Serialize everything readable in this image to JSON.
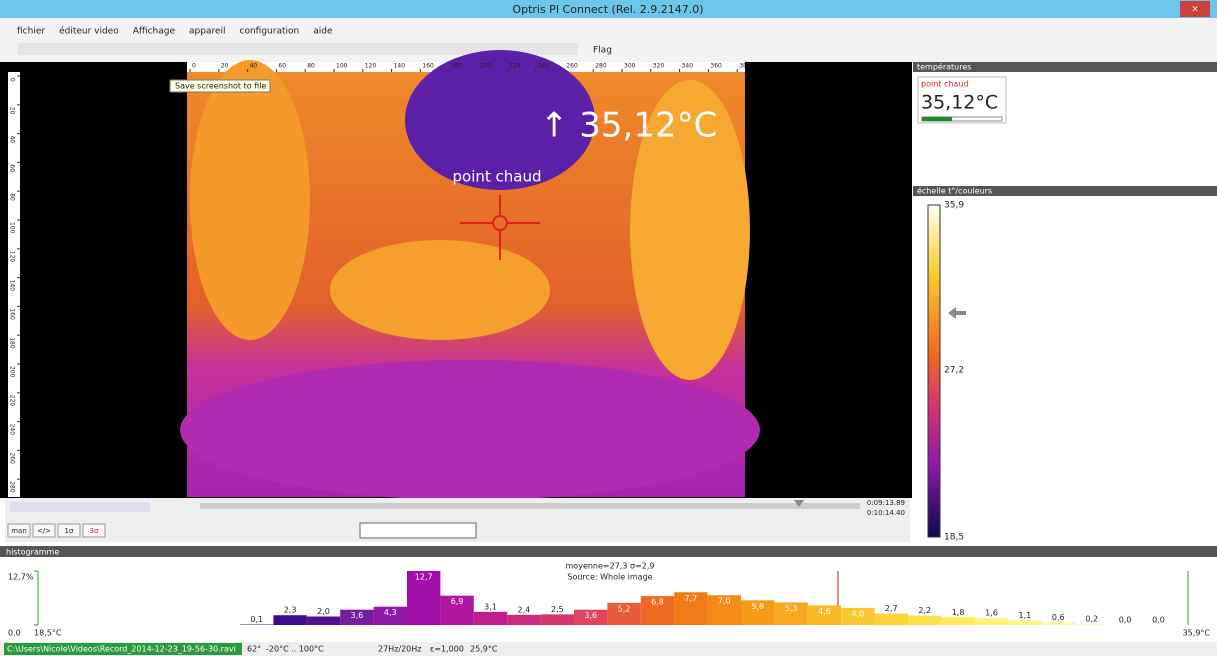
{
  "window": {
    "title": "Optris PI Connect (Rel. 2.9.2147.0)"
  },
  "menu": [
    "fichier",
    "éditeur video",
    "Affichage",
    "appareil",
    "configuration",
    "aide"
  ],
  "toolbar": {
    "flag": "Flag",
    "tooltip": "Save screenshot to file"
  },
  "image": {
    "ruler_x": [
      0,
      20,
      40,
      60,
      80,
      100,
      120,
      140,
      160,
      180,
      200,
      220,
      240,
      260,
      280,
      300,
      320,
      340,
      360,
      380
    ],
    "ruler_y": [
      0,
      20,
      40,
      60,
      80,
      100,
      120,
      140,
      160,
      180,
      200,
      220,
      240,
      260,
      280
    ],
    "hotspot_temp": "↑ 35,12°C",
    "hotspot_label": "point chaud"
  },
  "temperatures": {
    "title": "températures",
    "label": "point chaud",
    "value": "35,12°C"
  },
  "scale": {
    "title": "échelle t°/couleurs",
    "max": "35,9",
    "mid": "27,2",
    "min": "18,5"
  },
  "playback": {
    "time_current": "0:09:13.89",
    "time_total": "0:10:14.40",
    "buttons": [
      "man",
      "</>",
      "1σ",
      "3σ"
    ]
  },
  "histogram": {
    "title": "histogramme",
    "stats": "moyenne=27,3 σ=2,9",
    "source": "Source: Whole image",
    "ylim": [
      0,
      12.7
    ],
    "yticks": [
      {
        "value": 12.7,
        "label": "12,7%"
      },
      {
        "value": 0,
        "label": "0,0"
      }
    ],
    "x_min_label": "18,5°C",
    "x_max_label": "35,9°C",
    "values": [
      0.1,
      2.3,
      2.0,
      3.6,
      4.3,
      12.7,
      6.9,
      3.1,
      2.4,
      2.5,
      3.6,
      5.2,
      6.8,
      7.7,
      7.0,
      5.8,
      5.3,
      4.6,
      4.0,
      2.7,
      2.2,
      1.8,
      1.6,
      1.1,
      0.6,
      0.2,
      0.0,
      0.0
    ],
    "value_labels": [
      "0,1",
      "2,3",
      "2,0",
      "3,6",
      "4,3",
      "12,7",
      "6,9",
      "3,1",
      "2,4",
      "2,5",
      "3,6",
      "5,2",
      "6,8",
      "7,7",
      "7,0",
      "5,8",
      "5,3",
      "4,6",
      "4,0",
      "2,7",
      "2,2",
      "1,8",
      "1,6",
      "1,1",
      "0,6",
      "0,2",
      "0,0",
      "0,0"
    ],
    "colors": [
      "#2a0a6e",
      "#3c0a8c",
      "#55108f",
      "#7a1aa0",
      "#8e1aa6",
      "#a10fa8",
      "#b0169f",
      "#c01f90",
      "#cc2a80",
      "#d63670",
      "#e04560",
      "#e85a3a",
      "#ee6a20",
      "#f27a18",
      "#f58a18",
      "#f79a1a",
      "#f8a820",
      "#faba28",
      "#fcc830",
      "#fcd43a",
      "#fde048",
      "#fee85a",
      "#fef070",
      "#fff488",
      "#fff8a0",
      "#fffbc0",
      "#fffde0",
      "#ffffff"
    ]
  },
  "status": {
    "path": "C:\\Users\\Nicole\\Videos\\Record_2014-12-23_19-56-30.ravi",
    "fov": "62°",
    "range": "-20°C .. 100°C",
    "rate": "27Hz/20Hz",
    "emissivity": "ε=1,000",
    "temp": "25,9°C"
  }
}
